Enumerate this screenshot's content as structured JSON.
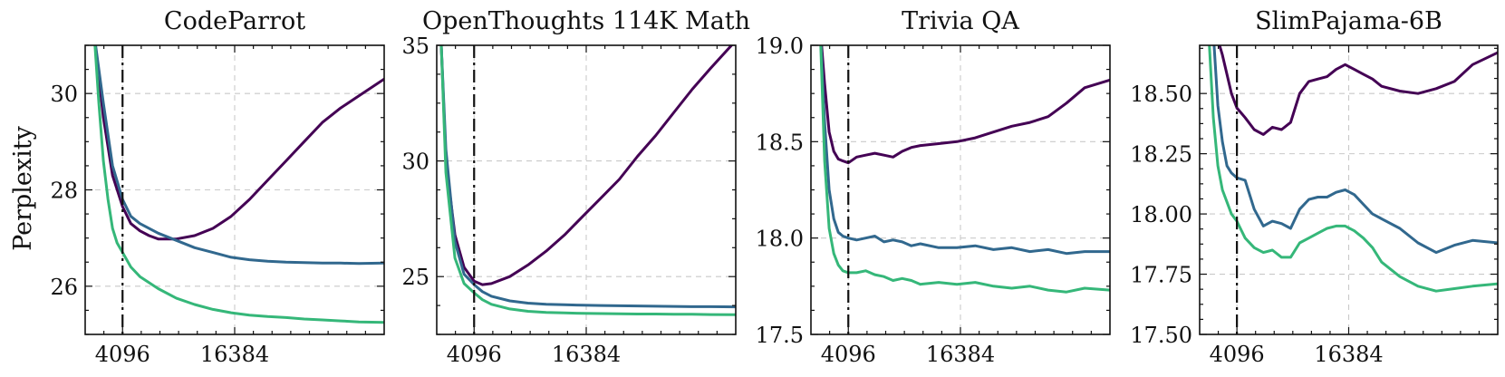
{
  "colors": {
    "dark": "#440154",
    "mid": "#31688e",
    "light": "#35b779",
    "marker": "#111111"
  },
  "chart_data": [
    {
      "type": "line",
      "title": "CodeParrot",
      "ylabel": "Perplexity",
      "xlabel": "",
      "x_ticks": [
        4096,
        16384
      ],
      "x_tick_labels": [
        "4096",
        "16384"
      ],
      "xlim": [
        0,
        32768
      ],
      "y_ticks": [
        26,
        28,
        30
      ],
      "y_tick_labels": [
        "26",
        "28",
        "30"
      ],
      "ylim": [
        25.0,
        31.0
      ],
      "vline_x": 4096,
      "series": [
        {
          "name": "dark",
          "color": "#440154",
          "x": [
            1000,
            2000,
            3000,
            4096,
            5000,
            6000,
            7000,
            8000,
            10000,
            12000,
            14000,
            16000,
            18000,
            20000,
            22000,
            24000,
            26000,
            28000,
            30000,
            32768
          ],
          "y": [
            31.2,
            29.5,
            28.3,
            27.65,
            27.3,
            27.15,
            27.05,
            26.98,
            26.98,
            27.05,
            27.2,
            27.45,
            27.8,
            28.2,
            28.6,
            29.0,
            29.4,
            29.7,
            29.95,
            30.3
          ]
        },
        {
          "name": "mid",
          "color": "#31688e",
          "x": [
            1000,
            2000,
            3000,
            4096,
            5000,
            6000,
            8000,
            10000,
            12000,
            14000,
            16000,
            18000,
            20000,
            22000,
            24000,
            26000,
            28000,
            30000,
            32768
          ],
          "y": [
            31.2,
            29.8,
            28.5,
            27.8,
            27.45,
            27.3,
            27.1,
            26.95,
            26.8,
            26.7,
            26.6,
            26.55,
            26.52,
            26.5,
            26.49,
            26.48,
            26.48,
            26.47,
            26.48
          ]
        },
        {
          "name": "light",
          "color": "#35b779",
          "x": [
            1000,
            1500,
            2000,
            2500,
            3000,
            3500,
            4096,
            5000,
            6000,
            8000,
            10000,
            12000,
            14000,
            16000,
            18000,
            20000,
            22000,
            24000,
            26000,
            28000,
            30000,
            32768
          ],
          "y": [
            31.2,
            29.8,
            28.6,
            27.8,
            27.2,
            26.9,
            26.7,
            26.4,
            26.2,
            25.95,
            25.75,
            25.62,
            25.52,
            25.45,
            25.4,
            25.37,
            25.35,
            25.32,
            25.3,
            25.28,
            25.26,
            25.25
          ]
        }
      ]
    },
    {
      "type": "line",
      "title": "OpenThoughts 114K Math",
      "ylabel": "",
      "xlabel": "",
      "x_ticks": [
        4096,
        16384
      ],
      "x_tick_labels": [
        "4096",
        "16384"
      ],
      "xlim": [
        0,
        32768
      ],
      "y_ticks": [
        25,
        30,
        35
      ],
      "y_tick_labels": [
        "25",
        "30",
        "35"
      ],
      "ylim": [
        22.5,
        35.0
      ],
      "vline_x": 4096,
      "series": [
        {
          "name": "dark",
          "color": "#440154",
          "x": [
            500,
            1000,
            2000,
            3000,
            4096,
            5000,
            6000,
            8000,
            10000,
            12000,
            14000,
            16000,
            18000,
            20000,
            22000,
            24000,
            26000,
            28000,
            30000,
            32768
          ],
          "y": [
            35.0,
            30.0,
            26.8,
            25.4,
            24.8,
            24.65,
            24.7,
            25.0,
            25.5,
            26.1,
            26.8,
            27.6,
            28.4,
            29.2,
            30.2,
            31.1,
            32.1,
            33.1,
            34.0,
            35.2
          ]
        },
        {
          "name": "mid",
          "color": "#31688e",
          "x": [
            500,
            1000,
            2000,
            3000,
            4096,
            5000,
            6000,
            8000,
            10000,
            12000,
            14000,
            16000,
            18000,
            20000,
            22000,
            24000,
            26000,
            28000,
            30000,
            32768
          ],
          "y": [
            35.0,
            30.5,
            26.5,
            25.1,
            24.65,
            24.35,
            24.15,
            23.95,
            23.85,
            23.8,
            23.78,
            23.76,
            23.75,
            23.74,
            23.73,
            23.72,
            23.71,
            23.7,
            23.7,
            23.69
          ]
        },
        {
          "name": "light",
          "color": "#35b779",
          "x": [
            500,
            1000,
            2000,
            3000,
            4096,
            5000,
            6000,
            8000,
            10000,
            12000,
            14000,
            16000,
            18000,
            20000,
            22000,
            24000,
            26000,
            28000,
            30000,
            32768
          ],
          "y": [
            35.0,
            29.5,
            25.8,
            24.7,
            24.3,
            24.0,
            23.8,
            23.6,
            23.5,
            23.45,
            23.43,
            23.41,
            23.4,
            23.39,
            23.38,
            23.38,
            23.37,
            23.37,
            23.36,
            23.35
          ]
        }
      ]
    },
    {
      "type": "line",
      "title": "Trivia QA",
      "ylabel": "",
      "xlabel": "",
      "x_ticks": [
        4096,
        16384
      ],
      "x_tick_labels": [
        "4096",
        "16384"
      ],
      "xlim": [
        0,
        32768
      ],
      "y_ticks": [
        17.5,
        18.0,
        18.5,
        19.0
      ],
      "y_tick_labels": [
        "17.5",
        "18.0",
        "18.5",
        "19.0"
      ],
      "ylim": [
        17.5,
        19.0
      ],
      "vline_x": 4096,
      "series": [
        {
          "name": "dark",
          "color": "#440154",
          "x": [
            1000,
            1500,
            2000,
            2500,
            3000,
            3500,
            4096,
            5000,
            6000,
            7000,
            8000,
            9000,
            10000,
            11000,
            12000,
            14000,
            16000,
            18000,
            20000,
            22000,
            24000,
            26000,
            28000,
            30000,
            32768
          ],
          "y": [
            19.1,
            18.8,
            18.55,
            18.45,
            18.41,
            18.4,
            18.39,
            18.42,
            18.43,
            18.44,
            18.43,
            18.42,
            18.45,
            18.47,
            18.48,
            18.49,
            18.5,
            18.52,
            18.55,
            18.58,
            18.6,
            18.63,
            18.7,
            18.78,
            18.82
          ]
        },
        {
          "name": "mid",
          "color": "#31688e",
          "x": [
            1000,
            1500,
            2000,
            2500,
            3000,
            3500,
            4096,
            5000,
            6000,
            7000,
            8000,
            9000,
            10000,
            11000,
            12000,
            14000,
            16000,
            18000,
            20000,
            22000,
            24000,
            26000,
            28000,
            30000,
            32768
          ],
          "y": [
            19.1,
            18.6,
            18.25,
            18.1,
            18.03,
            18.01,
            18.0,
            17.99,
            18.0,
            18.01,
            17.98,
            17.99,
            17.98,
            17.96,
            17.97,
            17.95,
            17.95,
            17.96,
            17.94,
            17.95,
            17.93,
            17.94,
            17.92,
            17.93,
            17.93
          ]
        },
        {
          "name": "light",
          "color": "#35b779",
          "x": [
            1000,
            1500,
            2000,
            2500,
            3000,
            3500,
            4096,
            5000,
            6000,
            7000,
            8000,
            9000,
            10000,
            11000,
            12000,
            14000,
            16000,
            18000,
            20000,
            22000,
            24000,
            26000,
            28000,
            30000,
            32768
          ],
          "y": [
            19.1,
            18.4,
            18.05,
            17.92,
            17.86,
            17.83,
            17.82,
            17.82,
            17.83,
            17.81,
            17.8,
            17.78,
            17.79,
            17.78,
            17.76,
            17.77,
            17.76,
            17.77,
            17.75,
            17.74,
            17.75,
            17.73,
            17.72,
            17.74,
            17.73
          ]
        }
      ]
    },
    {
      "type": "line",
      "title": "SlimPajama-6B",
      "ylabel": "",
      "xlabel": "",
      "x_ticks": [
        4096,
        16384
      ],
      "x_tick_labels": [
        "4096",
        "16384"
      ],
      "xlim": [
        0,
        32768
      ],
      "y_ticks": [
        17.5,
        17.75,
        18.0,
        18.25,
        18.5
      ],
      "y_tick_labels": [
        "17.50",
        "17.75",
        "18.00",
        "18.25",
        "18.50"
      ],
      "ylim": [
        17.5,
        18.7
      ],
      "vline_x": 4096,
      "series": [
        {
          "name": "dark",
          "color": "#440154",
          "x": [
            1800,
            2500,
            3000,
            3500,
            4096,
            5000,
            6000,
            7000,
            8000,
            9000,
            10000,
            11000,
            12000,
            13000,
            14000,
            15000,
            16000,
            17000,
            18000,
            19000,
            20000,
            22000,
            24000,
            26000,
            28000,
            30000,
            32768
          ],
          "y": [
            18.75,
            18.66,
            18.58,
            18.5,
            18.44,
            18.4,
            18.35,
            18.33,
            18.36,
            18.35,
            18.38,
            18.5,
            18.55,
            18.56,
            18.57,
            18.6,
            18.62,
            18.6,
            18.58,
            18.56,
            18.53,
            18.51,
            18.5,
            18.52,
            18.55,
            18.62,
            18.67
          ]
        },
        {
          "name": "mid",
          "color": "#31688e",
          "x": [
            1500,
            2000,
            2500,
            3000,
            3500,
            4096,
            5000,
            6000,
            7000,
            8000,
            9000,
            10000,
            11000,
            12000,
            13000,
            14000,
            15000,
            16000,
            17000,
            18000,
            19000,
            20000,
            22000,
            24000,
            26000,
            28000,
            30000,
            32768
          ],
          "y": [
            18.75,
            18.45,
            18.3,
            18.2,
            18.17,
            18.15,
            18.14,
            18.02,
            17.95,
            17.97,
            17.96,
            17.94,
            18.02,
            18.06,
            18.07,
            18.07,
            18.09,
            18.1,
            18.08,
            18.04,
            18.0,
            17.98,
            17.94,
            17.88,
            17.84,
            17.87,
            17.89,
            17.88
          ]
        },
        {
          "name": "light",
          "color": "#35b779",
          "x": [
            1000,
            1500,
            2000,
            2500,
            3000,
            3500,
            4096,
            5000,
            6000,
            7000,
            8000,
            9000,
            10000,
            11000,
            12000,
            13000,
            14000,
            15000,
            16000,
            17000,
            18000,
            19000,
            20000,
            22000,
            24000,
            26000,
            28000,
            30000,
            32768
          ],
          "y": [
            18.75,
            18.4,
            18.2,
            18.1,
            18.05,
            18.0,
            17.97,
            17.9,
            17.86,
            17.84,
            17.85,
            17.82,
            17.82,
            17.88,
            17.9,
            17.92,
            17.94,
            17.95,
            17.95,
            17.93,
            17.9,
            17.86,
            17.8,
            17.74,
            17.7,
            17.68,
            17.69,
            17.7,
            17.71
          ]
        }
      ]
    }
  ]
}
